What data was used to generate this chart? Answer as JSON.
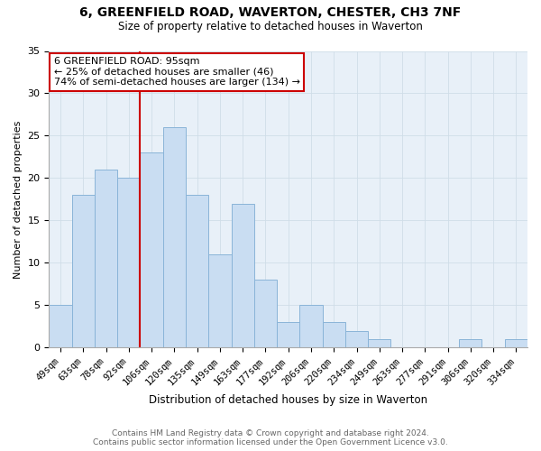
{
  "title": "6, GREENFIELD ROAD, WAVERTON, CHESTER, CH3 7NF",
  "subtitle": "Size of property relative to detached houses in Waverton",
  "xlabel": "Distribution of detached houses by size in Waverton",
  "ylabel": "Number of detached properties",
  "categories": [
    "49sqm",
    "63sqm",
    "78sqm",
    "92sqm",
    "106sqm",
    "120sqm",
    "135sqm",
    "149sqm",
    "163sqm",
    "177sqm",
    "192sqm",
    "206sqm",
    "220sqm",
    "234sqm",
    "249sqm",
    "263sqm",
    "277sqm",
    "291sqm",
    "306sqm",
    "320sqm",
    "334sqm"
  ],
  "values": [
    5,
    18,
    21,
    20,
    23,
    26,
    18,
    11,
    17,
    8,
    3,
    5,
    3,
    2,
    1,
    0,
    0,
    0,
    1,
    0,
    1
  ],
  "bar_color": "#c9ddf2",
  "bar_edge_color": "#8ab4d8",
  "grid_color": "#d0dde8",
  "background_color": "#e8f0f8",
  "red_line_x": 3.5,
  "annotation_text": "6 GREENFIELD ROAD: 95sqm\n← 25% of detached houses are smaller (46)\n74% of semi-detached houses are larger (134) →",
  "annotation_box_color": "#ffffff",
  "annotation_box_edge_color": "#cc0000",
  "footer_line1": "Contains HM Land Registry data © Crown copyright and database right 2024.",
  "footer_line2": "Contains public sector information licensed under the Open Government Licence v3.0.",
  "ylim": [
    0,
    35
  ],
  "yticks": [
    0,
    5,
    10,
    15,
    20,
    25,
    30,
    35
  ]
}
